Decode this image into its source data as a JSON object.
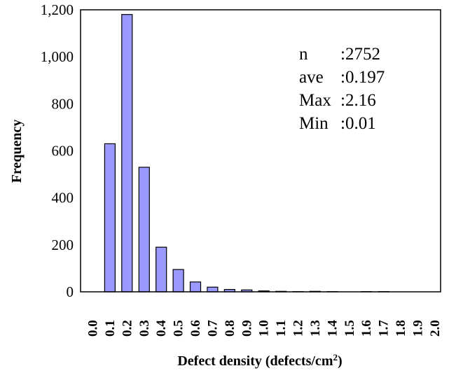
{
  "chart_data": {
    "type": "bar",
    "title": "",
    "xlabel": "Defect density (defects/cm",
    "xlabel_sup": "2",
    "xlabel_end": ")",
    "ylabel": "Frequency",
    "ylim": [
      0,
      1200
    ],
    "yticks": [
      "0",
      "200",
      "400",
      "600",
      "800",
      "1,000",
      "1,200"
    ],
    "categories": [
      "0.0",
      "0.1",
      "0.2",
      "0.3",
      "0.4",
      "0.5",
      "0.6",
      "0.7",
      "0.8",
      "0.9",
      "1.0",
      "1.1",
      "1.2",
      "1.3",
      "1.4",
      "1.5",
      "1.6",
      "1.7",
      "1.8",
      "1.9",
      "2.0"
    ],
    "values": [
      0,
      630,
      1180,
      530,
      190,
      95,
      42,
      20,
      10,
      8,
      4,
      2,
      1,
      2,
      1,
      0,
      1,
      1,
      0,
      0,
      0
    ],
    "bar_color": "#9999ff",
    "grid": false,
    "stats": [
      {
        "label": "n",
        "sep": ":",
        "value": "2752"
      },
      {
        "label": "ave",
        "sep": ":",
        "value": "0.197"
      },
      {
        "label": "Max",
        "sep": ":",
        "value": "2.16"
      },
      {
        "label": "Min",
        "sep": ":",
        "value": "0.01"
      }
    ]
  }
}
